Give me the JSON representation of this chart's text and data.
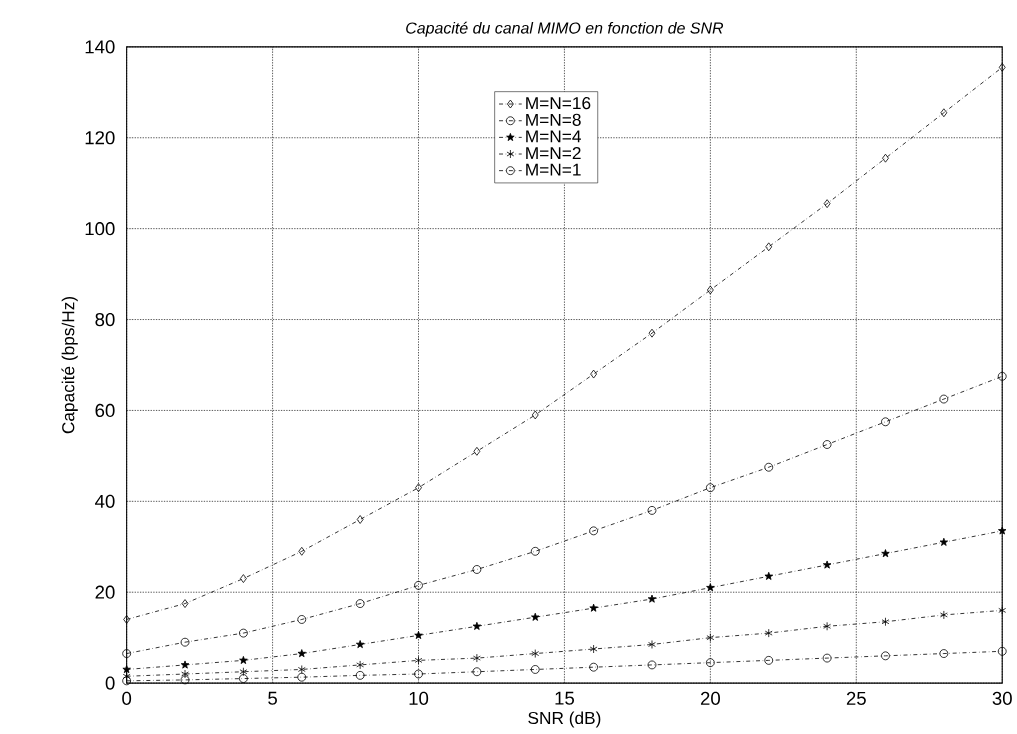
{
  "chart_data": {
    "type": "line",
    "title": "Capacité du canal MIMO en fonction de SNR",
    "xlabel": "SNR (dB)",
    "ylabel": "Capacité (bps/Hz)",
    "x": [
      0,
      2,
      4,
      6,
      8,
      10,
      12,
      14,
      16,
      18,
      20,
      22,
      24,
      26,
      28,
      30
    ],
    "series": [
      {
        "name": "M=N=16",
        "color": "#000000",
        "marker": "diamond",
        "values": [
          14,
          17.5,
          23,
          29,
          36,
          43,
          51,
          59,
          68,
          77,
          86.5,
          96,
          105.5,
          115.5,
          125.5,
          135.5
        ]
      },
      {
        "name": "M=N=8",
        "color": "#000000",
        "marker": "circle",
        "values": [
          6.5,
          9,
          11,
          14,
          17.5,
          21.5,
          25,
          29,
          33.5,
          38,
          43,
          47.5,
          52.5,
          57.5,
          62.5,
          67.5
        ]
      },
      {
        "name": "M=N=4",
        "color": "#000000",
        "marker": "star",
        "values": [
          3,
          4,
          5,
          6.5,
          8.5,
          10.5,
          12.5,
          14.5,
          16.5,
          18.5,
          21,
          23.5,
          26,
          28.5,
          31,
          33.5
        ]
      },
      {
        "name": "M=N=2",
        "color": "#000000",
        "marker": "cross",
        "values": [
          1.5,
          2,
          2.5,
          3,
          4,
          5,
          5.5,
          6.5,
          7.5,
          8.5,
          10,
          11,
          12.5,
          13.5,
          15,
          16
        ]
      },
      {
        "name": "M=N=1",
        "color": "#000000",
        "marker": "circle",
        "values": [
          0.5,
          0.7,
          1,
          1.3,
          1.7,
          2,
          2.5,
          3,
          3.5,
          4,
          4.5,
          5,
          5.5,
          6,
          6.5,
          7
        ]
      }
    ],
    "xlim": [
      0,
      30
    ],
    "ylim": [
      0,
      140
    ],
    "xticks": [
      0,
      5,
      10,
      15,
      20,
      25,
      30
    ],
    "yticks": [
      0,
      20,
      40,
      60,
      80,
      100,
      120,
      140
    ],
    "grid": true,
    "legend": "top",
    "line_style": "dashed"
  }
}
